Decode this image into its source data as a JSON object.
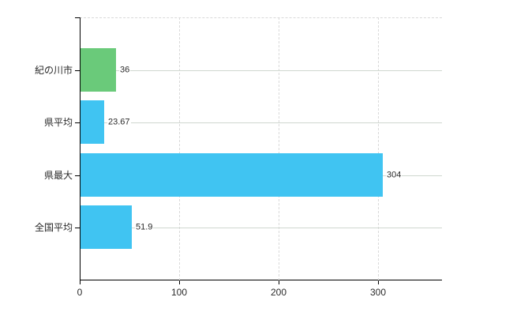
{
  "chart_data": {
    "type": "bar",
    "orientation": "horizontal",
    "title": "",
    "xlabel": "",
    "ylabel": "",
    "categories": [
      "紀の川市",
      "県平均",
      "県最大",
      "全国平均"
    ],
    "values": [
      36,
      23.67,
      304,
      51.9
    ],
    "value_labels": [
      "36",
      "23.67",
      "304",
      "51.9"
    ],
    "bar_colors": [
      "#6aca7a",
      "#40c4f2",
      "#40c4f2",
      "#40c4f2"
    ],
    "x_ticks": [
      0,
      100,
      200,
      300
    ],
    "x_tick_labels": [
      "0",
      "100",
      "200",
      "300"
    ],
    "xlim": [
      0,
      364
    ],
    "grid": {
      "vertical": "dashed",
      "horizontal": "solid",
      "vertical_color": "#d9d9d9",
      "horizontal_color": "#cfd7cf"
    },
    "legend": "none",
    "axis_color": "#000000",
    "text_color": "#2a2a2a",
    "background": "#ffffff"
  }
}
